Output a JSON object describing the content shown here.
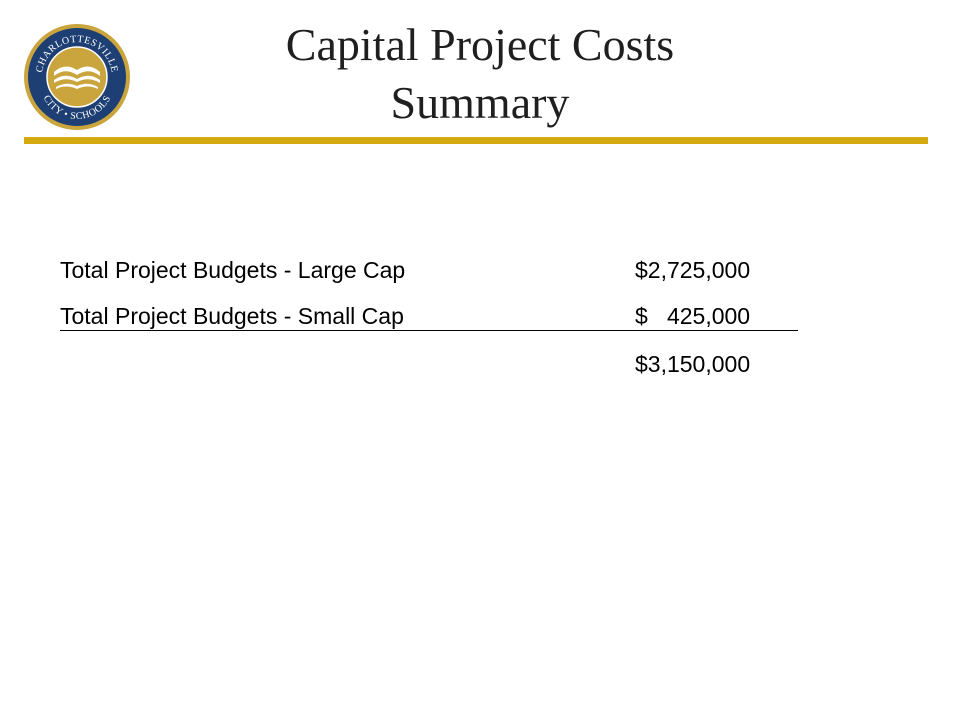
{
  "title": {
    "line1": "Capital Project Costs",
    "line2": "Summary"
  },
  "logo": {
    "text_top": "CHARLOTTESVILLE",
    "text_bottom": "CITY • SCHOOLS",
    "colors": {
      "ring": "#1d3f73",
      "field": "#caa43c",
      "accent": "#ffffff"
    }
  },
  "accent_color": "#d4aa10",
  "budget_rows": [
    {
      "label": "Total Project Budgets - Large Cap",
      "amount": "$2,725,000"
    },
    {
      "label": "Total Project Budgets - Small Cap",
      "amount": "$   425,000"
    }
  ],
  "total": {
    "amount": "$3,150,000"
  }
}
